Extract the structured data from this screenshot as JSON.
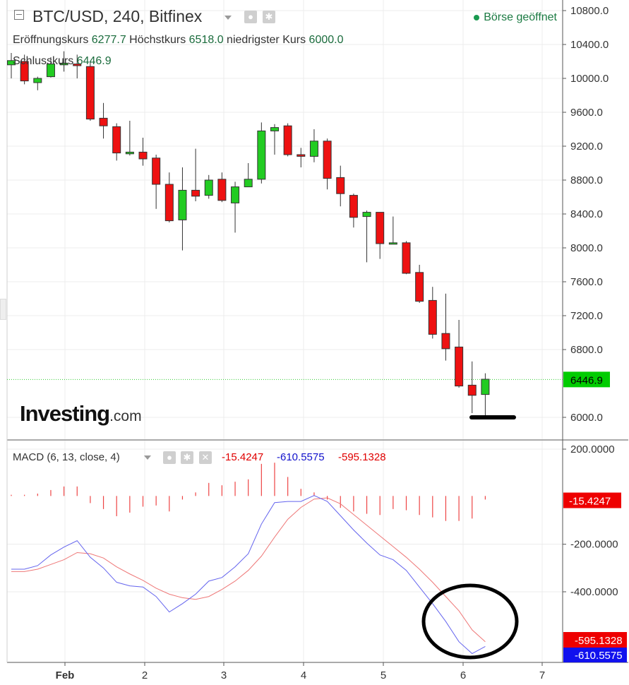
{
  "header": {
    "title": "BTC/USD, 240, Bitfinex",
    "open_label": "Eröffnungskurs",
    "open_value": "6277.7",
    "high_label": "Höchstkurs",
    "high_value": "6518.0",
    "low_label": "niedrigster Kurs",
    "low_value": "6000.0",
    "close_label": "Schlusskurs",
    "close_value": "6446.9",
    "status": "Börse geöffnet"
  },
  "logo": {
    "brand": "Investing",
    "suffix": ".com"
  },
  "macd_header": {
    "label": "MACD (6, 13, close, 4)",
    "histogram_value": "-15.4247",
    "macd_value": "-610.5575",
    "signal_value": "-595.1328"
  },
  "colors": {
    "up": "#22cc22",
    "down": "#ee1111",
    "macd": "#6464ee",
    "signal": "#ee7777",
    "histogram": "#ee4444",
    "last_price_bg": "#00cc00",
    "badge_red": "#ee0000",
    "badge_blue": "#1111ee"
  },
  "chart_data": [
    {
      "type": "candlestick",
      "title": "BTC/USD, 240, Bitfinex",
      "x_ticks": [
        "Feb",
        "2",
        "3",
        "4",
        "5",
        "6",
        "7"
      ],
      "y_ticks": [
        "10800.0",
        "10400.0",
        "10000.0",
        "9600.0",
        "9200.0",
        "8800.0",
        "8400.0",
        "8000.0",
        "7600.0",
        "7200.0",
        "6800.0",
        "6000.0"
      ],
      "ylim": [
        5900,
        10900
      ],
      "last_price": 6446.9,
      "last_price_label": "6446.9",
      "grid": true,
      "candles": [
        {
          "o": 10160,
          "h": 10300,
          "l": 10000,
          "c": 10210
        },
        {
          "o": 10200,
          "h": 10280,
          "l": 9930,
          "c": 9970
        },
        {
          "o": 9950,
          "h": 10020,
          "l": 9860,
          "c": 10000
        },
        {
          "o": 10020,
          "h": 10250,
          "l": 10010,
          "c": 10170
        },
        {
          "o": 10160,
          "h": 10320,
          "l": 10080,
          "c": 10180
        },
        {
          "o": 10170,
          "h": 10280,
          "l": 10000,
          "c": 10150
        },
        {
          "o": 10140,
          "h": 10200,
          "l": 9500,
          "c": 9520
        },
        {
          "o": 9530,
          "h": 9710,
          "l": 9290,
          "c": 9440
        },
        {
          "o": 9430,
          "h": 9470,
          "l": 9030,
          "c": 9120
        },
        {
          "o": 9110,
          "h": 9500,
          "l": 9090,
          "c": 9130
        },
        {
          "o": 9130,
          "h": 9300,
          "l": 8970,
          "c": 9050
        },
        {
          "o": 9060,
          "h": 9100,
          "l": 8460,
          "c": 8750
        },
        {
          "o": 8750,
          "h": 8890,
          "l": 8300,
          "c": 8320
        },
        {
          "o": 8330,
          "h": 8950,
          "l": 7970,
          "c": 8680
        },
        {
          "o": 8680,
          "h": 9170,
          "l": 8550,
          "c": 8610
        },
        {
          "o": 8620,
          "h": 8860,
          "l": 8580,
          "c": 8800
        },
        {
          "o": 8810,
          "h": 8890,
          "l": 8540,
          "c": 8560
        },
        {
          "o": 8530,
          "h": 8780,
          "l": 8180,
          "c": 8720
        },
        {
          "o": 8720,
          "h": 9000,
          "l": 8720,
          "c": 8810
        },
        {
          "o": 8810,
          "h": 9480,
          "l": 8760,
          "c": 9380
        },
        {
          "o": 9380,
          "h": 9460,
          "l": 9100,
          "c": 9420
        },
        {
          "o": 9440,
          "h": 9470,
          "l": 9080,
          "c": 9100
        },
        {
          "o": 9100,
          "h": 9180,
          "l": 8950,
          "c": 9080
        },
        {
          "o": 9080,
          "h": 9400,
          "l": 9010,
          "c": 9260
        },
        {
          "o": 9260,
          "h": 9290,
          "l": 8690,
          "c": 8820
        },
        {
          "o": 8830,
          "h": 8970,
          "l": 8490,
          "c": 8640
        },
        {
          "o": 8620,
          "h": 8640,
          "l": 8240,
          "c": 8360
        },
        {
          "o": 8370,
          "h": 8440,
          "l": 7830,
          "c": 8420
        },
        {
          "o": 8420,
          "h": 8420,
          "l": 7870,
          "c": 8050
        },
        {
          "o": 8050,
          "h": 8370,
          "l": 8050,
          "c": 8060
        },
        {
          "o": 8060,
          "h": 8080,
          "l": 7690,
          "c": 7700
        },
        {
          "o": 7710,
          "h": 7800,
          "l": 7350,
          "c": 7370
        },
        {
          "o": 7380,
          "h": 7540,
          "l": 6930,
          "c": 6980
        },
        {
          "o": 6990,
          "h": 7460,
          "l": 6670,
          "c": 6810
        },
        {
          "o": 6830,
          "h": 7150,
          "l": 6350,
          "c": 6370
        },
        {
          "o": 6380,
          "h": 6660,
          "l": 6050,
          "c": 6260
        },
        {
          "o": 6270,
          "h": 6520,
          "l": 6000,
          "c": 6450
        }
      ]
    },
    {
      "type": "line",
      "title": "MACD (6, 13, close, 4)",
      "y_ticks": [
        "200.0000",
        "-200.0000",
        "-400.0000"
      ],
      "ylim": [
        -745,
        215
      ],
      "series": [
        {
          "name": "MACD",
          "values": [
            -305,
            -305,
            -290,
            -245,
            -212,
            -185,
            -255,
            -300,
            -360,
            -375,
            -380,
            -420,
            -485,
            -450,
            -410,
            -355,
            -340,
            -295,
            -240,
            -115,
            -25,
            -20,
            -20,
            5,
            -20,
            -80,
            -140,
            -195,
            -245,
            -265,
            -310,
            -380,
            -450,
            -525,
            -610,
            -660,
            -630
          ]
        },
        {
          "name": "Signal",
          "values": [
            -315,
            -315,
            -305,
            -285,
            -265,
            -235,
            -240,
            -258,
            -295,
            -325,
            -352,
            -385,
            -410,
            -425,
            -432,
            -420,
            -390,
            -355,
            -310,
            -250,
            -170,
            -95,
            -45,
            -10,
            -5,
            -30,
            -75,
            -120,
            -165,
            -210,
            -255,
            -305,
            -360,
            -420,
            -480,
            -560,
            -610
          ]
        },
        {
          "name": "Histogram",
          "values": [
            5,
            5,
            10,
            25,
            40,
            40,
            -30,
            -55,
            -85,
            -70,
            -45,
            -40,
            -65,
            -15,
            15,
            55,
            45,
            60,
            70,
            135,
            140,
            80,
            30,
            15,
            -15,
            -50,
            -65,
            -75,
            -80,
            -55,
            -60,
            -80,
            -90,
            -105,
            -105,
            -95,
            -15
          ]
        }
      ]
    }
  ]
}
